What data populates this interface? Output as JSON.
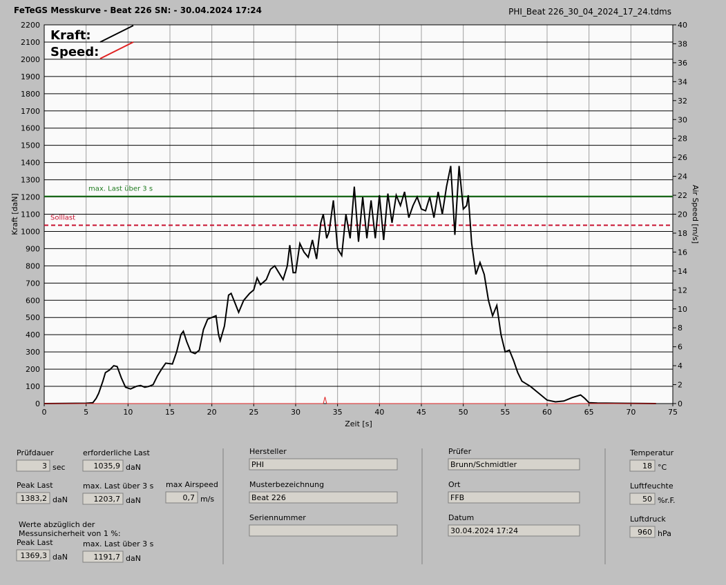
{
  "header": {
    "title": "FeTeGS Messkurve - Beat 226  SN:  - 30.04.2024 17:24",
    "file": "PHI_Beat 226_30_04_2024_17_24.tdms"
  },
  "chart_data": {
    "type": "line",
    "xlabel": "Zeit [s]",
    "ylabel": "Kraft [daN]",
    "y2label": "Air Speed [m/s]",
    "xlim": [
      0,
      75
    ],
    "xticks": [
      0,
      5,
      10,
      15,
      20,
      25,
      30,
      35,
      40,
      45,
      50,
      55,
      60,
      65,
      70,
      75
    ],
    "ylim": [
      0,
      2200
    ],
    "yticks": [
      0,
      100,
      200,
      300,
      400,
      500,
      600,
      700,
      800,
      900,
      1000,
      1100,
      1200,
      1300,
      1400,
      1500,
      1600,
      1700,
      1800,
      1900,
      2000,
      2100,
      2200
    ],
    "y2lim": [
      0,
      40
    ],
    "y2ticks": [
      0,
      2,
      4,
      6,
      8,
      10,
      12,
      14,
      16,
      18,
      20,
      22,
      24,
      26,
      28,
      30,
      32,
      34,
      36,
      38,
      40
    ],
    "grid": true,
    "legend": "top-left",
    "series": [
      {
        "name": "Kraft:",
        "color": "#000000",
        "x": [
          0,
          5,
          5.8,
          6.2,
          6.5,
          7,
          7.3,
          7.8,
          8.3,
          8.7,
          9.2,
          9.7,
          10.3,
          11,
          11.5,
          12,
          12.5,
          13,
          13.5,
          14,
          14.5,
          15.3,
          15.8,
          16.3,
          16.6,
          17,
          17.5,
          18,
          18.5,
          19,
          19.5,
          20,
          20.5,
          20.8,
          21,
          21.5,
          22,
          22.3,
          22.8,
          23.2,
          23.8,
          24.5,
          25,
          25.4,
          25.8,
          26.5,
          27,
          27.5,
          28,
          28.5,
          29,
          29.3,
          29.7,
          30,
          30.5,
          31,
          31.5,
          32,
          32.5,
          33,
          33.3,
          33.7,
          34,
          34.5,
          35,
          35.5,
          36,
          36.5,
          37,
          37.5,
          38,
          38.5,
          39,
          39.5,
          40,
          40.5,
          41,
          41.5,
          42,
          42.5,
          43,
          43.5,
          44,
          44.5,
          45,
          45.5,
          46,
          46.5,
          47,
          47.5,
          48,
          48.5,
          49,
          49.5,
          50,
          50.4,
          50.6,
          51,
          51.5,
          52,
          52.5,
          53,
          53.5,
          54,
          54.5,
          55,
          55.5,
          56,
          56.5,
          57,
          58,
          59,
          60,
          61,
          62,
          63,
          64,
          64.5,
          65,
          66,
          73
        ],
        "values": [
          0,
          2,
          5,
          30,
          60,
          130,
          180,
          195,
          220,
          215,
          150,
          95,
          85,
          100,
          105,
          95,
          100,
          110,
          160,
          200,
          235,
          230,
          300,
          400,
          420,
          360,
          300,
          290,
          310,
          430,
          490,
          500,
          510,
          400,
          365,
          450,
          630,
          640,
          580,
          530,
          600,
          640,
          660,
          730,
          690,
          720,
          780,
          800,
          760,
          720,
          800,
          920,
          760,
          760,
          930,
          880,
          850,
          950,
          840,
          1050,
          1100,
          960,
          1000,
          1180,
          900,
          860,
          1100,
          960,
          1260,
          940,
          1200,
          960,
          1180,
          960,
          1210,
          950,
          1220,
          1050,
          1210,
          1150,
          1230,
          1080,
          1150,
          1200,
          1130,
          1120,
          1200,
          1080,
          1230,
          1100,
          1260,
          1380,
          980,
          1380,
          1130,
          1150,
          1210,
          930,
          750,
          820,
          750,
          600,
          510,
          570,
          400,
          300,
          310,
          250,
          180,
          130,
          100,
          60,
          20,
          10,
          15,
          35,
          50,
          30,
          5,
          3,
          0
        ]
      },
      {
        "name": "Speed:",
        "color": "#e02020",
        "axis": "y2",
        "x": [
          0,
          33.3,
          33.5,
          33.7,
          73
        ],
        "values": [
          0,
          0,
          0.7,
          0,
          0
        ]
      }
    ],
    "reference_lines": [
      {
        "label": "max. Last über  3 s",
        "value": 1203.7,
        "color": "#1e7a1e",
        "style": "solid"
      },
      {
        "label": "Solllast",
        "value": 1035.9,
        "color": "#c8102e",
        "style": "dashed"
      }
    ]
  },
  "results": {
    "fields": [
      {
        "label": "Prüfdauer",
        "value": "3",
        "unit": "sec"
      },
      {
        "label": "erforderliche Last",
        "value": "1035,9",
        "unit": "daN"
      },
      {
        "label": "Peak Last",
        "value": "1383,2",
        "unit": "daN"
      },
      {
        "label": "max. Last über  3 s",
        "value": "1203,7",
        "unit": "daN"
      },
      {
        "label": "max Airspeed",
        "value": "0,7",
        "unit": "m/s"
      },
      {
        "label": "Peak Last",
        "value": "1369,3",
        "unit": "daN"
      },
      {
        "label": "max. Last über  3 s",
        "value": "1191,7",
        "unit": "daN"
      }
    ],
    "note": [
      "Werte abzüglich der",
      "Messunsicherheit von 1  %:"
    ]
  },
  "info": {
    "fields": [
      {
        "label": "Hersteller",
        "value": "PHI"
      },
      {
        "label": "Musterbezeichnung",
        "value": "Beat 226"
      },
      {
        "label": "Seriennummer"
      },
      {
        "label": "Prüfer",
        "value": "Brunn/Schmidtler"
      },
      {
        "label": "Ort",
        "value": "FFB"
      },
      {
        "label": "Datum",
        "value": "30.04.2024 17:24"
      }
    ]
  },
  "environment": {
    "fields": [
      {
        "label": "Temperatur",
        "value": "18",
        "unit": "°C"
      },
      {
        "label": "Luftfeuchte",
        "value": "50",
        "unit": "%r.F."
      },
      {
        "label": "Luftdruck",
        "value": "960",
        "unit": "hPa"
      }
    ]
  }
}
